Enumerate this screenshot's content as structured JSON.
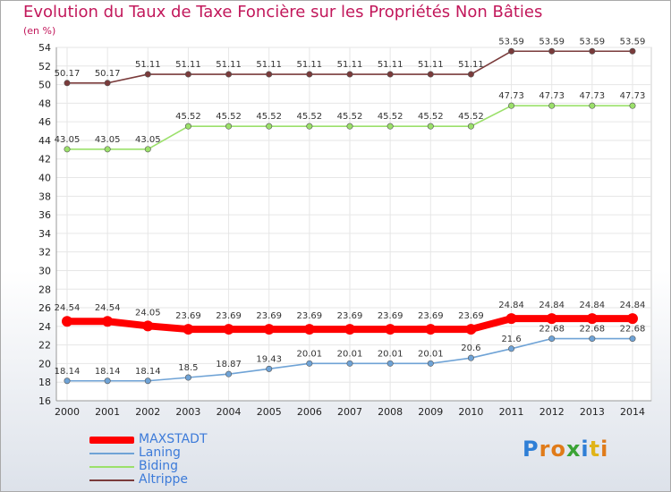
{
  "chart_data": {
    "type": "line",
    "title": "Evolution du Taux de Taxe Foncière sur les Propriétés Non Bâties",
    "ylabel": "(en %)",
    "xlabel": "",
    "categories": [
      "2000",
      "2001",
      "2002",
      "2003",
      "2004",
      "2005",
      "2006",
      "2007",
      "2008",
      "2009",
      "2010",
      "2011",
      "2012",
      "2013",
      "2014"
    ],
    "ylim": [
      16,
      54
    ],
    "ytick_step": 2,
    "series": [
      {
        "name": "MAXSTADT",
        "color": "#ff0000",
        "values": [
          24.54,
          24.54,
          24.05,
          23.69,
          23.69,
          23.69,
          23.69,
          23.69,
          23.69,
          23.69,
          23.69,
          24.84,
          24.84,
          24.84,
          24.84
        ],
        "labels": [
          "24.54",
          "24.54",
          "24.05",
          "23.69",
          "23.69",
          "23.69",
          "23.69",
          "23.69",
          "23.69",
          "23.69",
          "23.69",
          "24.84",
          "24.84",
          "24.84",
          "24.84"
        ]
      },
      {
        "name": "Laning",
        "color": "#6fa3d6",
        "values": [
          18.14,
          18.14,
          18.14,
          18.5,
          18.87,
          19.43,
          20.01,
          20.01,
          20.01,
          20.01,
          20.6,
          21.6,
          22.68,
          22.68,
          22.68
        ],
        "labels": [
          "18.14",
          "18.14",
          "18.14",
          "18.5",
          "18.87",
          "19.43",
          "20.01",
          "20.01",
          "20.01",
          "20.01",
          "20.6",
          "21.6",
          "22.68",
          "22.68",
          "22.68"
        ]
      },
      {
        "name": "Biding",
        "color": "#9be06a",
        "values": [
          43.05,
          43.05,
          43.05,
          45.52,
          45.52,
          45.52,
          45.52,
          45.52,
          45.52,
          45.52,
          45.52,
          47.73,
          47.73,
          47.73,
          47.73
        ],
        "labels": [
          "43.05",
          "43.05",
          "43.05",
          "45.52",
          "45.52",
          "45.52",
          "45.52",
          "45.52",
          "45.52",
          "45.52",
          "45.52",
          "47.73",
          "47.73",
          "47.73",
          "47.73"
        ]
      },
      {
        "name": "Altrippe",
        "color": "#7a3b3b",
        "values": [
          50.17,
          50.17,
          51.11,
          51.11,
          51.11,
          51.11,
          51.11,
          51.11,
          51.11,
          51.11,
          51.11,
          53.59,
          53.59,
          53.59,
          53.59
        ],
        "labels": [
          "50.17",
          "50.17",
          "51.11",
          "51.11",
          "51.11",
          "51.11",
          "51.11",
          "51.11",
          "51.11",
          "51.11",
          "51.11",
          "53.59",
          "53.59",
          "53.59",
          "53.59"
        ]
      }
    ],
    "legend": "bottom-left"
  },
  "brand": {
    "logo_text": "Proxiti"
  }
}
